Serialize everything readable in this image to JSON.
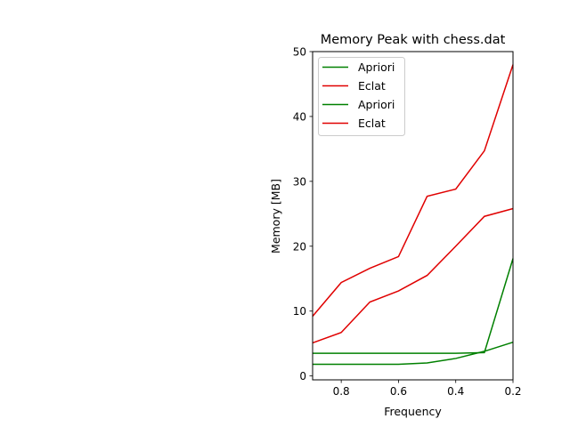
{
  "chart_data": {
    "type": "line",
    "title": "Memory Peak with chess.dat",
    "xlabel": "Frequency",
    "ylabel": "Memory [MB]",
    "xlim": [
      0.9,
      0.2
    ],
    "ylim": [
      -0.6,
      50
    ],
    "x_ticks": [
      0.8,
      0.6,
      0.4,
      0.2
    ],
    "y_ticks": [
      0,
      10,
      20,
      30,
      40,
      50
    ],
    "grid": false,
    "legend_position": "top-left",
    "x": [
      0.9,
      0.8,
      0.7,
      0.6,
      0.5,
      0.4,
      0.3,
      0.2
    ],
    "series": [
      {
        "name": "Apriori",
        "color": "#008000",
        "values": [
          3.5,
          3.5,
          3.5,
          3.5,
          3.5,
          3.5,
          3.6,
          18.1
        ]
      },
      {
        "name": "Eclat",
        "color": "#e00000",
        "values": [
          9.2,
          14.4,
          16.6,
          18.4,
          27.7,
          28.8,
          34.7,
          48.0
        ]
      },
      {
        "name": "Apriori",
        "color": "#008000",
        "values": [
          1.8,
          1.8,
          1.8,
          1.8,
          2.0,
          2.7,
          3.8,
          5.2
        ]
      },
      {
        "name": "Eclat",
        "color": "#e00000",
        "values": [
          5.1,
          6.7,
          11.4,
          13.1,
          15.5,
          20.0,
          24.6,
          25.8
        ]
      }
    ]
  }
}
